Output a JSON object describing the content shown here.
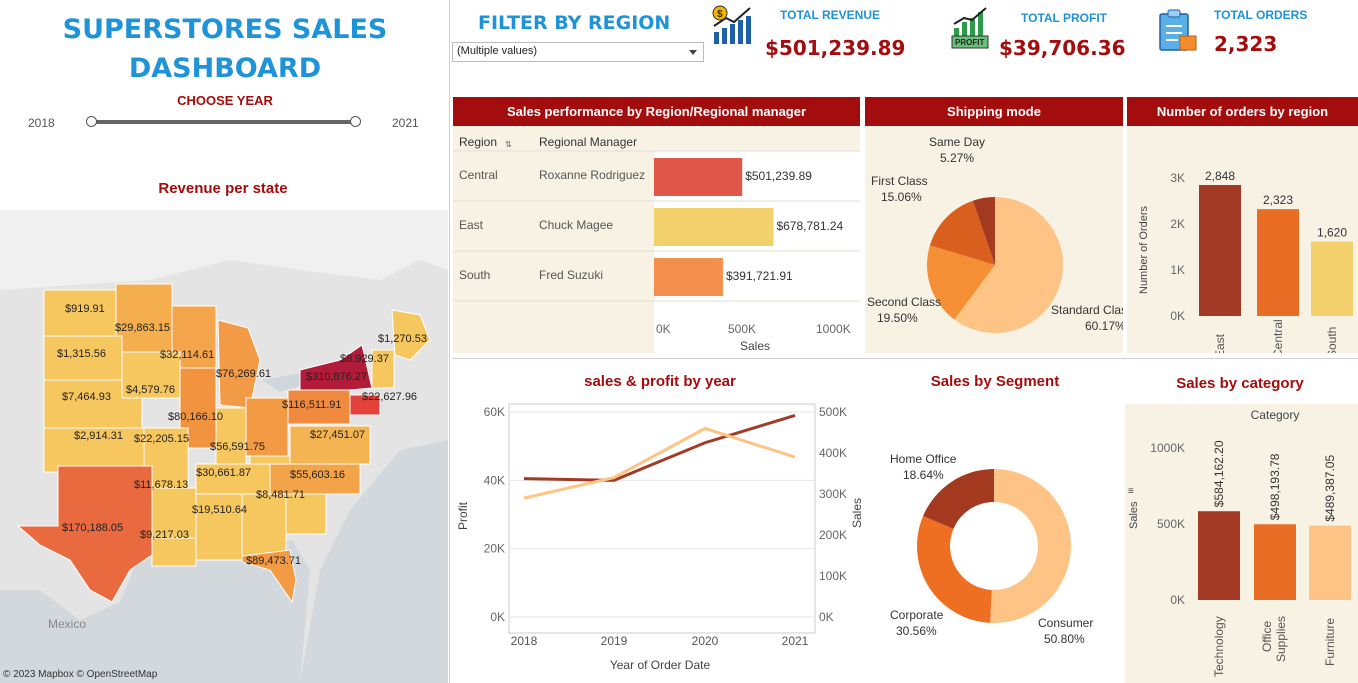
{
  "dashboard": {
    "title_line1": "SUPERSTORES SALES",
    "title_line2": "DASHBOARD",
    "choose_year_label": "CHOOSE YEAR",
    "year_start": "2018",
    "year_end": "2021"
  },
  "map": {
    "title": "Revenue per state",
    "country_label": "Mexico",
    "credit": "© 2023 Mapbox © OpenStreetMap",
    "state_values": [
      "$919.91",
      "$29,863.15",
      "$1,315.56",
      "$32,114.61",
      "$1,270.53",
      "$8,929.37",
      "$310,876.27",
      "$76,269.61",
      "$4,579.76",
      "$7,464.93",
      "$116,511.91",
      "$22,627.96",
      "$80,166.10",
      "$2,914.31",
      "$22,205.15",
      "$56,591.75",
      "$27,451.07",
      "$30,661.87",
      "$55,603.16",
      "$11,678.13",
      "$8,481.71",
      "$170,188.05",
      "$19,510.64",
      "$9,217.03",
      "$89,473.71"
    ]
  },
  "filter": {
    "title": "FILTER BY REGION",
    "selected_value": "(Multiple values)"
  },
  "kpis": {
    "revenue_label": "TOTAL REVENUE",
    "revenue_value": "$501,239.89",
    "profit_label": "TOTAL PROFIT",
    "profit_value": "$39,706.36",
    "profit_icon_text": "PROFIT",
    "orders_label": "TOTAL ORDERS",
    "orders_value": "2,323"
  },
  "colors": {
    "dark_red": "#a30d0d",
    "blue": "#1f93d8",
    "panel_bg": "#f8f2e5"
  },
  "regional": {
    "header": "Sales performance by Region/Regional manager",
    "col_region": "Region",
    "col_manager": "Regional Manager",
    "axis_title": "Sales",
    "ticks": [
      "0K",
      "500K",
      "1000K"
    ],
    "rows": [
      {
        "region": "Central",
        "manager": "Roxanne Rodriguez",
        "value": 501239.89,
        "label": "$501,239.89",
        "color": "#e0574a"
      },
      {
        "region": "East",
        "manager": "Chuck Magee",
        "value": 678781.24,
        "label": "$678,781.24",
        "color": "#f2d06b"
      },
      {
        "region": "South",
        "manager": "Fred Suzuki",
        "value": 391721.91,
        "label": "$391,721.91",
        "color": "#f58f4d"
      }
    ]
  },
  "shipping": {
    "header": "Shipping mode",
    "slices": [
      {
        "name": "Standard Class",
        "pct": "60.17%",
        "value": 60.17,
        "color": "#fdc486"
      },
      {
        "name": "Second Class",
        "pct": "19.50%",
        "value": 19.5,
        "color": "#f58f35"
      },
      {
        "name": "First Class",
        "pct": "15.06%",
        "value": 15.06,
        "color": "#d95f1e"
      },
      {
        "name": "Same Day",
        "pct": "5.27%",
        "value": 5.27,
        "color": "#a33a20"
      }
    ]
  },
  "orders_region": {
    "header": "Number of orders by region",
    "axis_title": "Number of Orders",
    "ticks": [
      "0K",
      "1K",
      "2K",
      "3K"
    ]
  },
  "sales_profit": {
    "title": "sales & profit by year",
    "x_title": "Year of Order Date",
    "left_axis_title": "Profit",
    "right_axis_title": "Sales",
    "left_ticks": [
      "0K",
      "20K",
      "40K",
      "60K"
    ],
    "right_ticks": [
      "0K",
      "100K",
      "200K",
      "300K",
      "400K",
      "500K"
    ]
  },
  "segment": {
    "title": "Sales  by Segment",
    "slices": [
      {
        "name": "Consumer",
        "pct": "50.80%",
        "value": 50.8,
        "color": "#fdc486"
      },
      {
        "name": "Corporate",
        "pct": "30.56%",
        "value": 30.56,
        "color": "#ee6e22"
      },
      {
        "name": "Home Office",
        "pct": "18.64%",
        "value": 18.64,
        "color": "#a33a20"
      }
    ]
  },
  "category": {
    "title": "Sales by category",
    "header": "Category",
    "axis_title": "Sales",
    "ticks": [
      "0K",
      "500K",
      "1000K"
    ]
  },
  "chart_data": [
    {
      "type": "bar",
      "title": "Number of orders by region",
      "categories": [
        "East",
        "Central",
        "South"
      ],
      "values": [
        2848,
        2323,
        1620
      ],
      "labels": [
        "2,848",
        "2,323",
        "1,620"
      ],
      "colors": [
        "#a33a26",
        "#e86c24",
        "#f2d06b"
      ],
      "ylabel": "Number of Orders",
      "ylim": [
        0,
        3000
      ]
    },
    {
      "type": "line",
      "title": "sales & profit by year",
      "x": [
        "2018",
        "2019",
        "2020",
        "2021"
      ],
      "series": [
        {
          "name": "Profit",
          "axis": "left",
          "values": [
            40500,
            40000,
            51000,
            59000
          ],
          "color": "#a33a26"
        },
        {
          "name": "Sales",
          "axis": "right",
          "values": [
            290000,
            340000,
            460000,
            390000
          ],
          "color": "#fdc486"
        }
      ],
      "xlabel": "Year of Order Date",
      "ylim_left": [
        0,
        60000
      ],
      "ylim_right": [
        0,
        500000
      ]
    },
    {
      "type": "bar",
      "title": "Sales by category",
      "categories": [
        "Technology",
        "Office Supplies",
        "Furniture"
      ],
      "values": [
        584162.2,
        498193.78,
        489387.05
      ],
      "labels": [
        "$584,162.20",
        "$498,193.78",
        "$489,387.05"
      ],
      "colors": [
        "#a33a26",
        "#e86c24",
        "#fdc486"
      ],
      "ylabel": "Sales",
      "ylim": [
        0,
        1000000
      ]
    }
  ]
}
